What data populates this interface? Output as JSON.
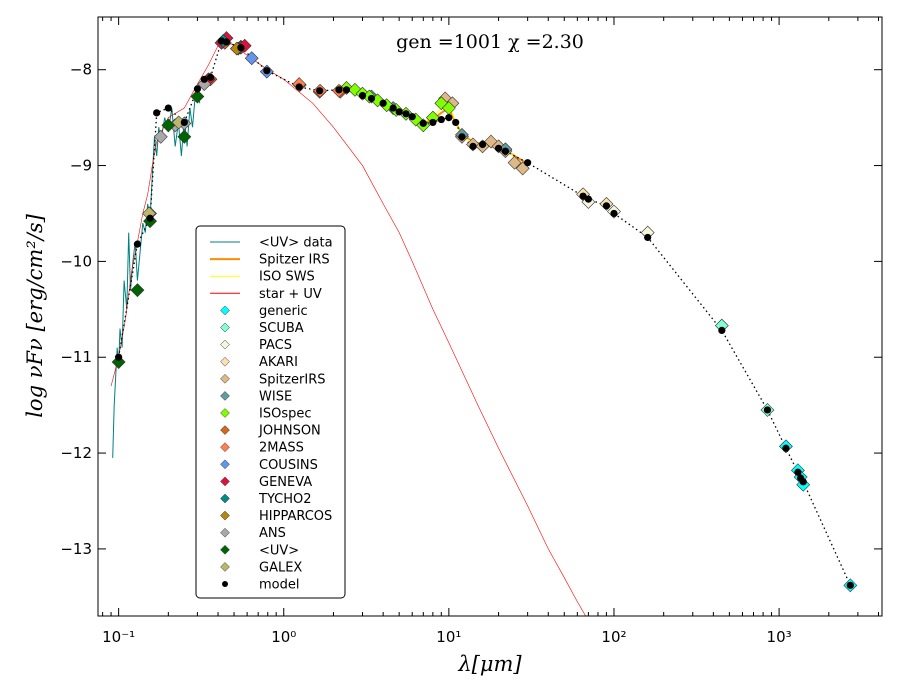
{
  "chart_data": {
    "type": "scatter",
    "annotation": "gen =1001  χ =2.30",
    "xlabel": "λ[μm]",
    "ylabel": "log νFν [erg/cm²/s]",
    "xscale": "log",
    "xlim": [
      0.075,
      4200
    ],
    "ylim": [
      -13.7,
      -7.45
    ],
    "x_ticks": [
      0.1,
      1,
      10,
      100,
      1000
    ],
    "x_tick_labels": [
      "10⁻¹",
      "10⁰",
      "10¹",
      "10²",
      "10³"
    ],
    "y_ticks": [
      -8,
      -9,
      -10,
      -11,
      -12,
      -13
    ],
    "y_tick_labels": [
      "−8",
      "−9",
      "−10",
      "−11",
      "−12",
      "−13"
    ],
    "legend_position": "center-left",
    "series": [
      {
        "name": "<UV> data",
        "kind": "line",
        "color": "#008080",
        "points": [
          [
            0.092,
            -12.05
          ],
          [
            0.094,
            -11.5
          ],
          [
            0.096,
            -11.2
          ],
          [
            0.098,
            -10.9
          ],
          [
            0.1,
            -11.1
          ],
          [
            0.102,
            -10.7
          ],
          [
            0.105,
            -10.9
          ],
          [
            0.108,
            -10.2
          ],
          [
            0.112,
            -10.5
          ],
          [
            0.115,
            -9.7
          ],
          [
            0.118,
            -10.3
          ],
          [
            0.122,
            -10.0
          ],
          [
            0.126,
            -9.8
          ],
          [
            0.13,
            -10.2
          ],
          [
            0.135,
            -9.9
          ],
          [
            0.14,
            -9.6
          ],
          [
            0.145,
            -9.7
          ],
          [
            0.15,
            -9.4
          ],
          [
            0.155,
            -9.55
          ],
          [
            0.16,
            -9.1
          ],
          [
            0.165,
            -8.7
          ],
          [
            0.17,
            -8.9
          ],
          [
            0.175,
            -8.6
          ],
          [
            0.18,
            -8.75
          ],
          [
            0.19,
            -8.5
          ],
          [
            0.2,
            -8.65
          ],
          [
            0.21,
            -8.4
          ],
          [
            0.22,
            -8.8
          ],
          [
            0.23,
            -8.55
          ],
          [
            0.24,
            -8.9
          ],
          [
            0.25,
            -8.5
          ],
          [
            0.26,
            -8.8
          ],
          [
            0.27,
            -8.4
          ],
          [
            0.28,
            -8.6
          ],
          [
            0.29,
            -8.3
          ],
          [
            0.3,
            -8.2
          ],
          [
            0.31,
            -8.35
          ]
        ]
      },
      {
        "name": "Spitzer IRS",
        "kind": "line",
        "color": "#ff8c00",
        "points": [
          [
            5.2,
            -8.45
          ],
          [
            6,
            -8.5
          ],
          [
            7,
            -8.55
          ],
          [
            8,
            -8.52
          ],
          [
            9,
            -8.45
          ],
          [
            10,
            -8.4
          ],
          [
            11,
            -8.55
          ],
          [
            12,
            -8.68
          ],
          [
            14,
            -8.75
          ],
          [
            16,
            -8.78
          ],
          [
            18,
            -8.72
          ],
          [
            20,
            -8.8
          ],
          [
            24,
            -8.88
          ],
          [
            28,
            -8.95
          ],
          [
            30,
            -9.0
          ]
        ]
      },
      {
        "name": "ISO SWS",
        "kind": "line",
        "color": "#ffff00",
        "points": [
          [
            2.4,
            -8.2
          ],
          [
            3,
            -8.25
          ],
          [
            4,
            -8.35
          ],
          [
            5,
            -8.42
          ],
          [
            6,
            -8.5
          ],
          [
            7,
            -8.55
          ],
          [
            8,
            -8.5
          ],
          [
            9,
            -8.4
          ],
          [
            10,
            -8.35
          ],
          [
            11,
            -8.55
          ],
          [
            12,
            -8.7
          ],
          [
            15,
            -8.78
          ],
          [
            20,
            -8.82
          ],
          [
            25,
            -8.9
          ]
        ]
      },
      {
        "name": "star + UV",
        "kind": "line",
        "color": "#ff0000",
        "points": [
          [
            0.09,
            -11.3
          ],
          [
            0.1,
            -11.0
          ],
          [
            0.11,
            -10.6
          ],
          [
            0.12,
            -10.1
          ],
          [
            0.13,
            -9.8
          ],
          [
            0.14,
            -9.5
          ],
          [
            0.15,
            -9.3
          ],
          [
            0.16,
            -9.0
          ],
          [
            0.17,
            -8.75
          ],
          [
            0.2,
            -8.5
          ],
          [
            0.25,
            -8.4
          ],
          [
            0.3,
            -8.15
          ],
          [
            0.35,
            -7.95
          ],
          [
            0.4,
            -7.75
          ],
          [
            0.45,
            -7.7
          ],
          [
            0.5,
            -7.75
          ],
          [
            0.6,
            -7.85
          ],
          [
            0.8,
            -8.0
          ],
          [
            1,
            -8.1
          ],
          [
            1.5,
            -8.35
          ],
          [
            2,
            -8.6
          ],
          [
            3,
            -9.0
          ],
          [
            4,
            -9.4
          ],
          [
            5,
            -9.7
          ],
          [
            6,
            -10.0
          ],
          [
            8,
            -10.5
          ],
          [
            10,
            -10.85
          ],
          [
            15,
            -11.5
          ],
          [
            20,
            -11.95
          ],
          [
            30,
            -12.55
          ],
          [
            40,
            -13.0
          ],
          [
            50,
            -13.3
          ],
          [
            60,
            -13.55
          ],
          [
            70,
            -13.75
          ],
          [
            80,
            -13.9
          ]
        ]
      },
      {
        "name": "generic",
        "kind": "marker",
        "color": "#00ffff",
        "points": [
          [
            1100,
            -11.93
          ],
          [
            1300,
            -12.18
          ],
          [
            1350,
            -12.25
          ],
          [
            1400,
            -12.33
          ],
          [
            2700,
            -13.38
          ]
        ]
      },
      {
        "name": "SCUBA",
        "kind": "marker",
        "color": "#7fffd4",
        "points": [
          [
            450,
            -10.67
          ],
          [
            850,
            -11.55
          ]
        ]
      },
      {
        "name": "PACS",
        "kind": "marker",
        "color": "#f5f5dc",
        "points": [
          [
            70,
            -9.38
          ],
          [
            100,
            -9.48
          ],
          [
            160,
            -9.7
          ]
        ]
      },
      {
        "name": "AKARI",
        "kind": "marker",
        "color": "#ffdead",
        "points": [
          [
            65,
            -9.3
          ],
          [
            90,
            -9.4
          ]
        ]
      },
      {
        "name": "SpitzerIRS",
        "kind": "marker",
        "color": "#deb887",
        "points": [
          [
            9.5,
            -8.3
          ],
          [
            10.5,
            -8.35
          ],
          [
            12,
            -8.7
          ],
          [
            14,
            -8.78
          ],
          [
            16,
            -8.8
          ],
          [
            18,
            -8.75
          ],
          [
            20,
            -8.8
          ],
          [
            22,
            -8.85
          ],
          [
            25,
            -8.97
          ],
          [
            28,
            -9.03
          ]
        ]
      },
      {
        "name": "WISE",
        "kind": "marker",
        "color": "#5f9ea0",
        "points": [
          [
            3.4,
            -8.28
          ],
          [
            4.6,
            -8.4
          ],
          [
            12,
            -8.68
          ],
          [
            22,
            -8.83
          ]
        ]
      },
      {
        "name": "ISOspec",
        "kind": "marker",
        "color": "#7fff00",
        "points": [
          [
            2.4,
            -8.19
          ],
          [
            2.7,
            -8.21
          ],
          [
            3.0,
            -8.25
          ],
          [
            3.3,
            -8.28
          ],
          [
            3.7,
            -8.32
          ],
          [
            4.2,
            -8.37
          ],
          [
            4.8,
            -8.42
          ],
          [
            5.5,
            -8.46
          ],
          [
            6.3,
            -8.52
          ],
          [
            7.0,
            -8.58
          ],
          [
            8.0,
            -8.5
          ],
          [
            9.0,
            -8.35
          ],
          [
            10.0,
            -8.4
          ]
        ]
      },
      {
        "name": "JOHNSON",
        "kind": "marker",
        "color": "#d2691e",
        "points": [
          [
            0.36,
            -8.1
          ],
          [
            0.44,
            -7.72
          ],
          [
            0.55,
            -7.76
          ],
          [
            1.25,
            -8.16
          ],
          [
            1.65,
            -8.23
          ],
          [
            2.2,
            -8.23
          ]
        ]
      },
      {
        "name": "2MASS",
        "kind": "marker",
        "color": "#ff7f50",
        "points": [
          [
            1.24,
            -8.15
          ],
          [
            1.66,
            -8.22
          ],
          [
            2.16,
            -8.22
          ]
        ]
      },
      {
        "name": "COUSINS",
        "kind": "marker",
        "color": "#6495ed",
        "points": [
          [
            0.64,
            -7.88
          ],
          [
            0.79,
            -8.02
          ]
        ]
      },
      {
        "name": "GENEVA",
        "kind": "marker",
        "color": "#dc143c",
        "points": [
          [
            0.35,
            -8.1
          ],
          [
            0.42,
            -7.72
          ],
          [
            0.45,
            -7.67
          ],
          [
            0.55,
            -7.77
          ],
          [
            0.58,
            -7.75
          ]
        ]
      },
      {
        "name": "TYCHO2",
        "kind": "marker",
        "color": "#008b8b",
        "points": [
          [
            0.43,
            -7.7
          ],
          [
            0.53,
            -7.78
          ]
        ]
      },
      {
        "name": "HIPPARCOS",
        "kind": "marker",
        "color": "#b8860b",
        "points": [
          [
            0.52,
            -7.78
          ]
        ]
      },
      {
        "name": "ANS",
        "kind": "marker",
        "color": "#a9a9a9",
        "points": [
          [
            0.155,
            -9.5
          ],
          [
            0.18,
            -8.7
          ],
          [
            0.22,
            -8.58
          ],
          [
            0.25,
            -8.56
          ],
          [
            0.33,
            -8.15
          ]
        ]
      },
      {
        "name": "<UV>",
        "kind": "marker",
        "color": "#006400",
        "points": [
          [
            0.1,
            -11.05
          ],
          [
            0.13,
            -10.3
          ],
          [
            0.155,
            -9.58
          ],
          [
            0.2,
            -8.58
          ],
          [
            0.25,
            -8.7
          ],
          [
            0.3,
            -8.28
          ]
        ]
      },
      {
        "name": "GALEX",
        "kind": "marker",
        "color": "#bdb76b",
        "points": [
          [
            0.153,
            -9.5
          ],
          [
            0.231,
            -8.55
          ]
        ]
      },
      {
        "name": "model",
        "kind": "model",
        "color": "#000000",
        "points": [
          [
            0.1,
            -11.0
          ],
          [
            0.13,
            -9.82
          ],
          [
            0.155,
            -9.55
          ],
          [
            0.17,
            -8.45
          ],
          [
            0.2,
            -8.4
          ],
          [
            0.25,
            -8.55
          ],
          [
            0.3,
            -8.2
          ],
          [
            0.33,
            -8.1
          ],
          [
            0.36,
            -8.08
          ],
          [
            0.42,
            -7.7
          ],
          [
            0.45,
            -7.71
          ],
          [
            0.55,
            -7.77
          ],
          [
            0.79,
            -8.01
          ],
          [
            1.24,
            -8.18
          ],
          [
            1.65,
            -8.22
          ],
          [
            2.16,
            -8.21
          ],
          [
            2.4,
            -8.21
          ],
          [
            3,
            -8.27
          ],
          [
            3.4,
            -8.3
          ],
          [
            4.0,
            -8.35
          ],
          [
            4.6,
            -8.4
          ],
          [
            5,
            -8.44
          ],
          [
            5.5,
            -8.46
          ],
          [
            6,
            -8.49
          ],
          [
            7,
            -8.56
          ],
          [
            8,
            -8.55
          ],
          [
            9,
            -8.52
          ],
          [
            10,
            -8.5
          ],
          [
            11,
            -8.55
          ],
          [
            12,
            -8.7
          ],
          [
            14,
            -8.8
          ],
          [
            16,
            -8.78
          ],
          [
            20,
            -8.82
          ],
          [
            22,
            -8.85
          ],
          [
            30,
            -8.97
          ],
          [
            65,
            -9.32
          ],
          [
            70,
            -9.35
          ],
          [
            90,
            -9.42
          ],
          [
            100,
            -9.5
          ],
          [
            160,
            -9.75
          ],
          [
            450,
            -10.72
          ],
          [
            850,
            -11.55
          ],
          [
            1100,
            -11.95
          ],
          [
            1300,
            -12.2
          ],
          [
            1350,
            -12.26
          ],
          [
            1400,
            -12.3
          ],
          [
            2700,
            -13.38
          ]
        ]
      }
    ]
  }
}
